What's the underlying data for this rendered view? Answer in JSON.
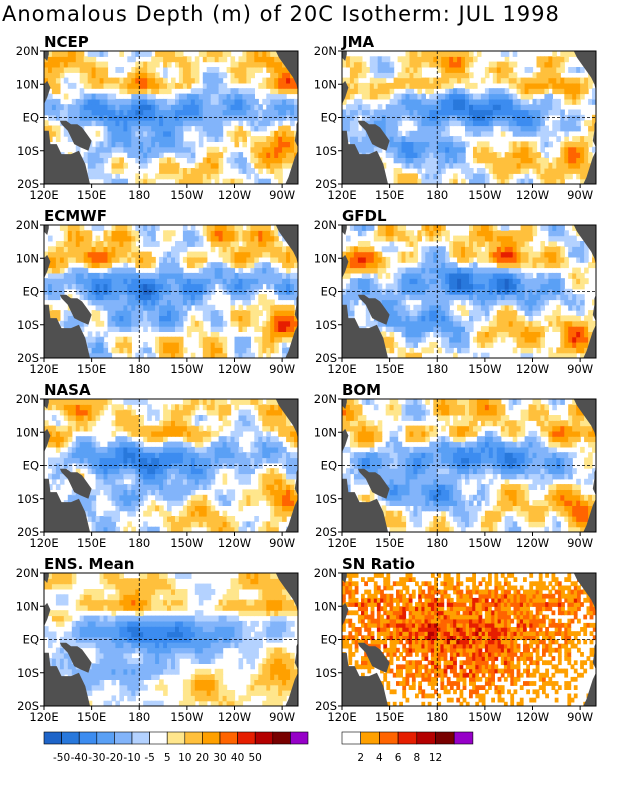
{
  "title": "Anomalous Depth (m) of 20C Isotherm: JUL 1998",
  "axes": {
    "x_ticks": [
      "120E",
      "150E",
      "180",
      "150W",
      "120W",
      "90W"
    ],
    "y_ticks": [
      "20N",
      "10N",
      "EQ",
      "10S",
      "20S"
    ]
  },
  "panels": [
    {
      "id": "ncep",
      "label": "NCEP"
    },
    {
      "id": "jma",
      "label": "JMA"
    },
    {
      "id": "ecmwf",
      "label": "ECMWF"
    },
    {
      "id": "gfdl",
      "label": "GFDL"
    },
    {
      "id": "nasa",
      "label": "NASA"
    },
    {
      "id": "bom",
      "label": "BOM"
    },
    {
      "id": "ens",
      "label": "ENS. Mean"
    },
    {
      "id": "sn",
      "label": "SN Ratio"
    }
  ],
  "colorbars": {
    "anomaly": {
      "labels": [
        "-50",
        "-40",
        "-30",
        "-20",
        "-10",
        "-5",
        "5",
        "10",
        "20",
        "30",
        "40",
        "50"
      ],
      "colors": [
        "#1e64c8",
        "#2878dc",
        "#3c8cf0",
        "#5aa0f5",
        "#82b4fa",
        "#b4d2ff",
        "#ffffff",
        "#ffe68c",
        "#ffc03c",
        "#ffa000",
        "#ff6400",
        "#e61e00",
        "#b40000",
        "#780000",
        "#9600c8"
      ]
    },
    "sn": {
      "labels": [
        "2",
        "4",
        "6",
        "8",
        "12"
      ],
      "colors": [
        "#ffffff",
        "#ffa000",
        "#ff6400",
        "#e61e00",
        "#b40000",
        "#780000",
        "#9600c8"
      ]
    }
  },
  "colors": {
    "land": "#505050",
    "frame": "#000000"
  }
}
